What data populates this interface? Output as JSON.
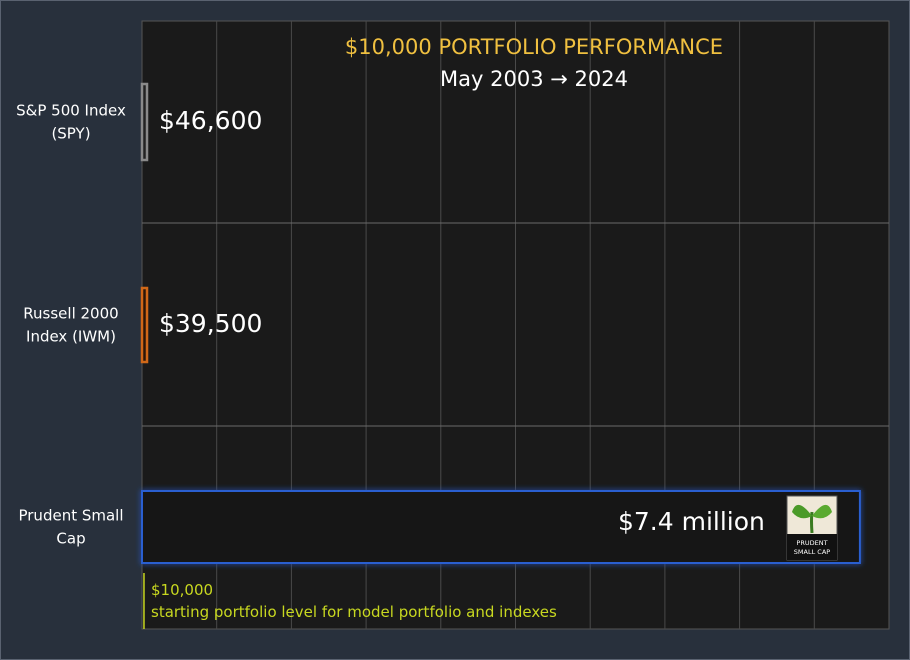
{
  "chart_data": {
    "type": "bar",
    "orientation": "horizontal",
    "title": "$10,000 PORTFOLIO PERFORMANCE",
    "subtitle": "May 2003 → 2024",
    "categories": [
      "S&P 500 Index\n(SPY)",
      "Russell 2000\nIndex (IWM)",
      "Prudent Small\nCap"
    ],
    "values": [
      46600,
      39500,
      7400000
    ],
    "value_labels": [
      "$46,600",
      "$39,500",
      "$7.4 million"
    ],
    "xlim": [
      0,
      7700000
    ],
    "grid": true,
    "baseline": {
      "value": 10000,
      "label_line1": "$10,000",
      "label_line2": "starting portfolio level for model portfolio and indexes"
    },
    "logo_text": [
      "PRUDENT",
      "SMALL CAP"
    ]
  },
  "colors": {
    "background": "#28303c",
    "plot_bg": "#1a1a1a",
    "grid": "#4a4a4a",
    "title": "#f0c040",
    "subtitle": "#ffffff",
    "category_text": "#ffffff",
    "value_text": "#ffffff",
    "baseline": "#c8d820",
    "bar_fills": [
      "#222222",
      "#2a1608",
      "#141414"
    ],
    "bar_strokes": [
      "#8a8a8a",
      "#d06818",
      "#2a5fd0"
    ]
  }
}
